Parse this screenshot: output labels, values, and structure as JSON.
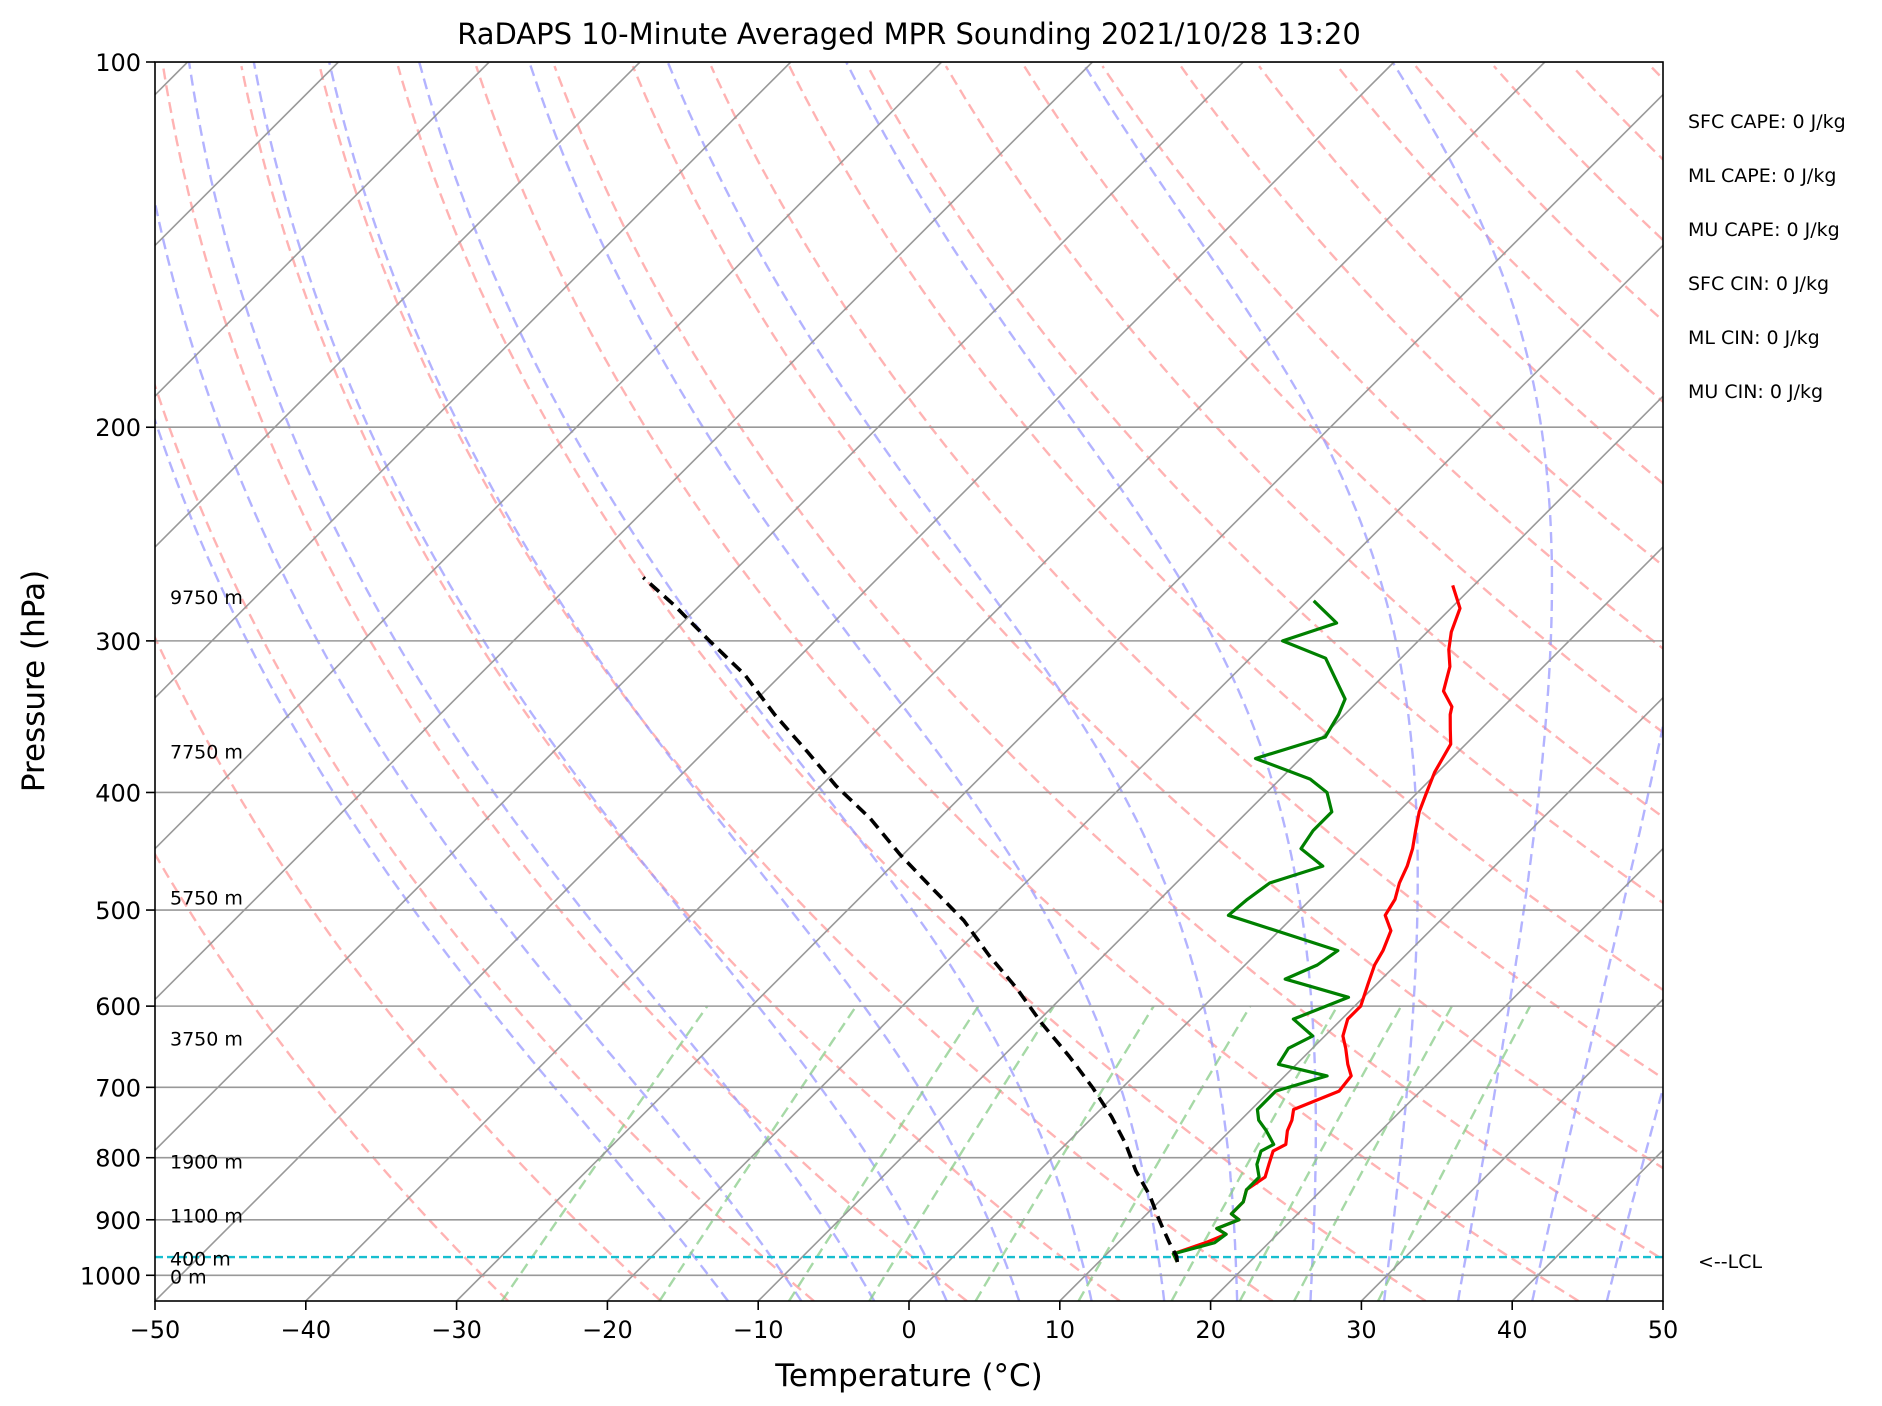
{
  "chart_data": {
    "type": "line",
    "subtype": "skew-T log-P sounding",
    "title": "RaDAPS 10-Minute Averaged MPR Sounding 2021/10/28 13:20",
    "xlabel": "Temperature (°C)",
    "ylabel": "Pressure (hPa)",
    "xlim": [
      -50,
      50
    ],
    "ylim": [
      1050,
      100
    ],
    "y_scale": "log",
    "x_ticks": [
      -50,
      -40,
      -30,
      -20,
      -10,
      0,
      10,
      20,
      30,
      40,
      50
    ],
    "x_tick_labels": [
      "−50",
      "−40",
      "−30",
      "−20",
      "−10",
      "0",
      "10",
      "20",
      "30",
      "40",
      "50"
    ],
    "y_ticks": [
      1000,
      900,
      800,
      700,
      600,
      500,
      400,
      300,
      200,
      100
    ],
    "y_tick_labels": [
      "1000",
      "900",
      "800",
      "700",
      "600",
      "500",
      "400",
      "300",
      "200",
      "100"
    ],
    "grid": true,
    "colors": {
      "temperature": "#ff0000",
      "dewpoint": "#008000",
      "parcel": "#000000",
      "lcl": "#17becf",
      "dry_adiabats": "#ff9999",
      "moist_adiabats": "#9999ff",
      "mixing_ratio": "#88cc88",
      "isotherms": "#999999"
    },
    "series": [
      {
        "key": "temperature",
        "style": "solid",
        "points": [
          [
            15.2,
            975
          ],
          [
            14.4,
            960
          ],
          [
            15.8,
            940
          ],
          [
            16.6,
            925
          ],
          [
            15.6,
            915
          ],
          [
            16.5,
            900
          ],
          [
            15.6,
            890
          ],
          [
            15.6,
            870
          ],
          [
            15.0,
            850
          ],
          [
            15.4,
            830
          ],
          [
            14.8,
            810
          ],
          [
            14.2,
            790
          ],
          [
            14.6,
            780
          ],
          [
            13.8,
            760
          ],
          [
            13.4,
            745
          ],
          [
            12.8,
            730
          ],
          [
            14.6,
            705
          ],
          [
            14.4,
            685
          ],
          [
            13.4,
            670
          ],
          [
            12.2,
            650
          ],
          [
            11.2,
            635
          ],
          [
            10.4,
            615
          ],
          [
            10.4,
            600
          ],
          [
            9.4,
            575
          ],
          [
            8.6,
            555
          ],
          [
            8.2,
            540
          ],
          [
            7.4,
            520
          ],
          [
            6.0,
            505
          ],
          [
            5.6,
            490
          ],
          [
            4.8,
            475
          ],
          [
            4.2,
            460
          ],
          [
            3.4,
            445
          ],
          [
            2.4,
            430
          ],
          [
            1.4,
            415
          ],
          [
            0.6,
            400
          ],
          [
            -0.2,
            385
          ],
          [
            -0.6,
            375
          ],
          [
            -1.0,
            365
          ],
          [
            -2.0,
            355
          ],
          [
            -3.0,
            345
          ],
          [
            -3.4,
            340
          ],
          [
            -5.0,
            330
          ],
          [
            -6.2,
            315
          ],
          [
            -7.4,
            305
          ],
          [
            -8.4,
            295
          ],
          [
            -9.4,
            282
          ],
          [
            -11.4,
            270
          ]
        ]
      },
      {
        "key": "dewpoint",
        "style": "solid",
        "points": [
          [
            15.2,
            975
          ],
          [
            14.4,
            960
          ],
          [
            16.4,
            940
          ],
          [
            16.6,
            925
          ],
          [
            15.6,
            915
          ],
          [
            16.5,
            900
          ],
          [
            15.6,
            890
          ],
          [
            15.6,
            870
          ],
          [
            15.0,
            850
          ],
          [
            15.0,
            830
          ],
          [
            14.0,
            810
          ],
          [
            13.4,
            790
          ],
          [
            13.8,
            780
          ],
          [
            12.4,
            760
          ],
          [
            11.2,
            745
          ],
          [
            10.4,
            730
          ],
          [
            10.4,
            705
          ],
          [
            12.8,
            685
          ],
          [
            8.8,
            670
          ],
          [
            8.4,
            650
          ],
          [
            9.2,
            635
          ],
          [
            6.8,
            615
          ],
          [
            9.0,
            590
          ],
          [
            3.6,
            570
          ],
          [
            4.8,
            555
          ],
          [
            5.2,
            540
          ],
          [
            -4.4,
            505
          ],
          [
            -4.2,
            490
          ],
          [
            -3.8,
            475
          ],
          [
            -1.4,
            460
          ],
          [
            -4.0,
            445
          ],
          [
            -4.4,
            430
          ],
          [
            -4.4,
            415
          ],
          [
            -6.0,
            400
          ],
          [
            -8.0,
            390
          ],
          [
            -13.0,
            375
          ],
          [
            -9.8,
            360
          ],
          [
            -10.4,
            345
          ],
          [
            -11.0,
            335
          ],
          [
            -15.0,
            310
          ],
          [
            -19.0,
            300
          ],
          [
            -16.6,
            290
          ],
          [
            -19.6,
            278
          ]
        ]
      },
      {
        "key": "parcel",
        "style": "dashed",
        "points": [
          [
            15.2,
            975
          ],
          [
            14.8,
            965
          ],
          [
            13.4,
            940
          ],
          [
            11.2,
            900
          ],
          [
            9.0,
            860
          ],
          [
            6.4,
            820
          ],
          [
            4.0,
            780
          ],
          [
            1.2,
            740
          ],
          [
            -2.0,
            700
          ],
          [
            -5.6,
            660
          ],
          [
            -9.6,
            620
          ],
          [
            -13.6,
            580
          ],
          [
            -17.6,
            545
          ],
          [
            -21.6,
            510
          ],
          [
            -25.8,
            480
          ],
          [
            -30.2,
            450
          ],
          [
            -34.6,
            420
          ],
          [
            -39.0,
            395
          ],
          [
            -43.2,
            370
          ],
          [
            -47.8,
            345
          ],
          [
            -52.4,
            320
          ],
          [
            -57.0,
            300
          ],
          [
            -61.8,
            280
          ],
          [
            -65.6,
            266
          ]
        ]
      }
    ],
    "lcl": {
      "pressure": 966,
      "label": "<--LCL"
    },
    "height_labels": [
      {
        "label": "9750 m",
        "pressure": 276
      },
      {
        "label": "7750 m",
        "pressure": 370
      },
      {
        "label": "5750 m",
        "pressure": 488
      },
      {
        "label": "3750 m",
        "pressure": 638
      },
      {
        "label": "1900 m",
        "pressure": 806
      },
      {
        "label": "1100 m",
        "pressure": 893
      },
      {
        "label": "400 m",
        "pressure": 969
      },
      {
        "label": "0 m",
        "pressure": 1002
      }
    ],
    "indices": [
      "SFC CAPE: 0 J/kg",
      "ML CAPE: 0 J/kg",
      "MU CAPE: 0 J/kg",
      "SFC CIN: 0 J/kg",
      "ML CIN: 0 J/kg",
      "MU CIN: 0 J/kg"
    ]
  }
}
